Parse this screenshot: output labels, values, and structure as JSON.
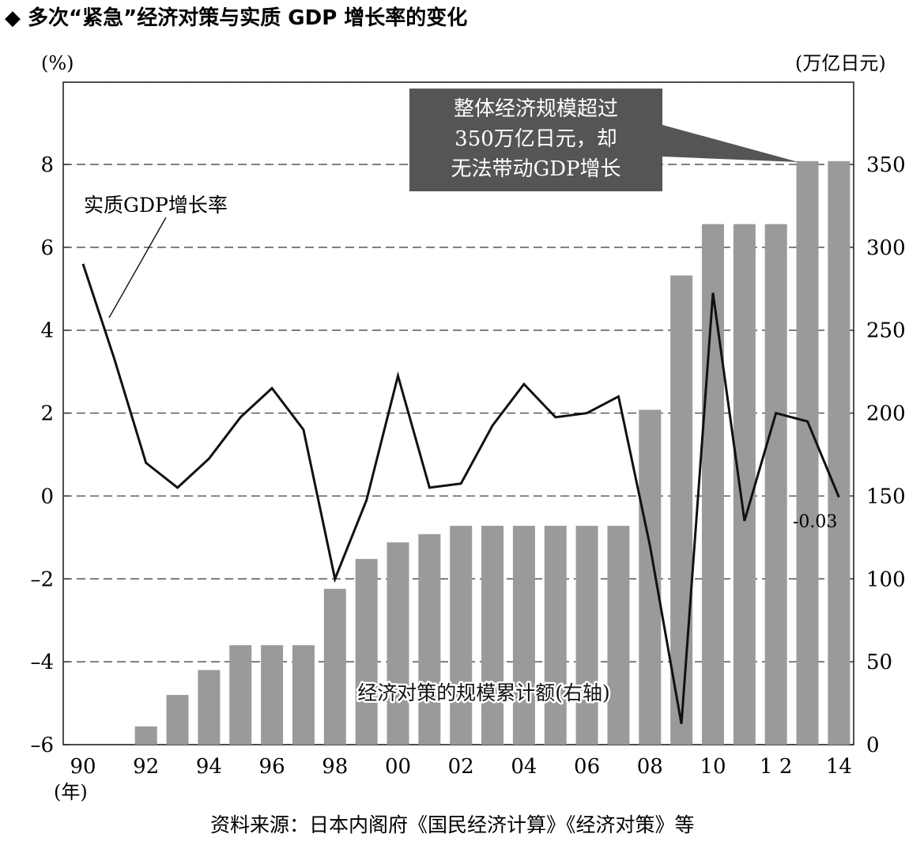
{
  "title": "◆ 多次“紧急”经济对策与实质 GDP 增长率的变化",
  "source": "资料来源：日本内阁府《国民经济计算》《经济对策》等",
  "chart_data": {
    "type": "bar+line",
    "left_axis": {
      "unit": "(%)",
      "ticks": [
        "8",
        "6",
        "4",
        "2",
        "0",
        "–2",
        "–4",
        "–6"
      ],
      "ylim": [
        -6,
        8
      ]
    },
    "right_axis": {
      "unit": "(万亿日元)",
      "ticks": [
        "350",
        "300",
        "250",
        "200",
        "150",
        "100",
        "50",
        "0"
      ],
      "ylim": [
        0,
        350
      ]
    },
    "x_axis": {
      "unit": "(年)",
      "tick_labels": [
        "90",
        "92",
        "94",
        "96",
        "98",
        "00",
        "02",
        "04",
        "06",
        "08",
        "10",
        "1 2",
        "14"
      ]
    },
    "x": [
      "90",
      "91",
      "92",
      "93",
      "94",
      "95",
      "96",
      "97",
      "98",
      "99",
      "00",
      "01",
      "02",
      "03",
      "04",
      "05",
      "06",
      "07",
      "08",
      "09",
      "10",
      "11",
      "12",
      "13",
      "14"
    ],
    "bar_series": {
      "name": "经济对策的规模累计额(右轴)",
      "values": [
        0,
        0,
        11,
        30,
        45,
        60,
        60,
        60,
        94,
        112,
        122,
        127,
        132,
        132,
        132,
        132,
        132,
        132,
        202,
        283,
        314,
        314,
        314,
        352,
        352
      ]
    },
    "line_series": {
      "name": "实质GDP增长率",
      "values": [
        5.6,
        3.3,
        0.8,
        0.2,
        0.9,
        1.9,
        2.6,
        1.6,
        -2.0,
        -0.1,
        2.9,
        0.2,
        0.3,
        1.7,
        2.7,
        1.9,
        2.0,
        2.4,
        -1.2,
        -5.5,
        4.9,
        -0.6,
        2.0,
        1.8,
        -0.03
      ]
    },
    "annotation_box": [
      "整体经济规模超过",
      "350万亿日元，却",
      "无法带动GDP增长"
    ],
    "value_label": "-0.03",
    "grid": "dashed-horizontal",
    "colors": {
      "bar": "#9a9a9a",
      "line": "#111111",
      "box_fill": "#555555",
      "box_text": "#ffffff"
    }
  }
}
